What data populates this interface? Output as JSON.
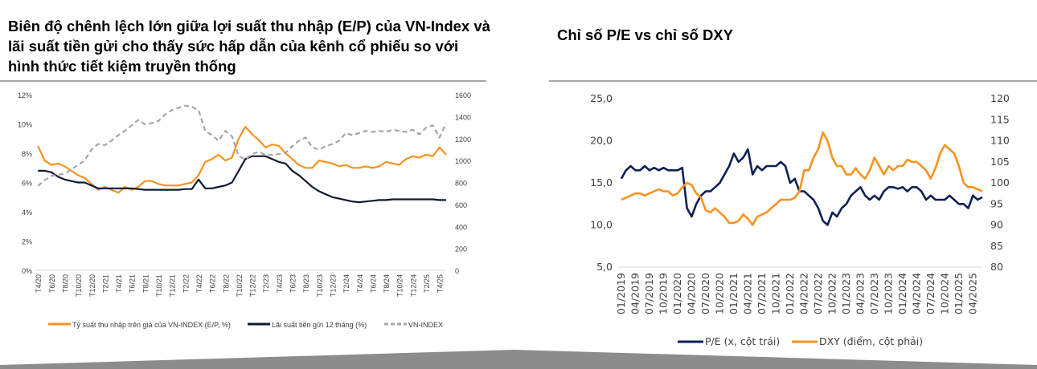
{
  "left_title": "Biên độ chênh lệch lớn giữa lợi suất thu nhập (E/P) của VN-Index và lãi suất tiền gửi cho thấy sức hấp dẫn của kênh cổ phiếu so với hình thức tiết kiệm truyền thống",
  "right_title": "Chỉ số P/E vs chỉ số DXY",
  "chart_data": [
    {
      "type": "line",
      "title": "",
      "ylim": [
        0,
        12
      ],
      "y2lim": [
        0,
        1600
      ],
      "yticks": [
        "0%",
        "2%",
        "4%",
        "6%",
        "8%",
        "10%",
        "12%"
      ],
      "y2ticks": [
        "0",
        "200",
        "400",
        "600",
        "800",
        "1000",
        "1200",
        "1400",
        "1600"
      ],
      "xticks": [
        "T4/20",
        "T6/20",
        "T8/20",
        "T10/20",
        "T12/20",
        "T2/21",
        "T4/21",
        "T6/21",
        "T8/21",
        "T10/21",
        "T12/21",
        "T2/22",
        "T4/22",
        "T6/22",
        "T8/22",
        "T10/22",
        "T12/22",
        "T2/23",
        "T4/23",
        "T6/23",
        "T8/23",
        "T10/23",
        "T12/23",
        "T2/24",
        "T4/24",
        "T6/24",
        "T8/24",
        "T10/24",
        "T12/24",
        "T2/25",
        "T4/25"
      ],
      "series": [
        {
          "name": "Tỷ suất thu nhập trên giá của VN-INDEX (E/P, %)",
          "color": "#f7931e",
          "axis": "left",
          "values": [
            8.5,
            7.5,
            7.2,
            7.3,
            7.1,
            6.8,
            6.5,
            6.3,
            5.9,
            5.5,
            5.7,
            5.5,
            5.3,
            5.7,
            5.5,
            5.7,
            6.1,
            6.1,
            5.9,
            5.8,
            5.8,
            5.8,
            5.9,
            6.0,
            6.5,
            7.4,
            7.6,
            7.9,
            7.5,
            7.7,
            9.0,
            9.8,
            9.3,
            8.9,
            8.4,
            8.6,
            8.5,
            8.0,
            7.6,
            7.2,
            7.0,
            7.0,
            7.5,
            7.4,
            7.3,
            7.1,
            7.2,
            7.0,
            7.0,
            7.1,
            7.0,
            7.1,
            7.4,
            7.3,
            7.2,
            7.6,
            7.8,
            7.7,
            7.9,
            7.8,
            8.4,
            7.9
          ]
        },
        {
          "name": "Lãi suất tiền gửi 12 tháng (%)",
          "color": "#0d1b33",
          "axis": "left",
          "values": [
            6.8,
            6.8,
            6.7,
            6.4,
            6.2,
            6.1,
            6.0,
            6.0,
            5.8,
            5.6,
            5.6,
            5.6,
            5.6,
            5.6,
            5.6,
            5.55,
            5.5,
            5.5,
            5.5,
            5.5,
            5.5,
            5.5,
            5.55,
            5.55,
            6.2,
            5.6,
            5.6,
            5.7,
            5.8,
            6.0,
            6.8,
            7.6,
            7.8,
            7.8,
            7.8,
            7.6,
            7.4,
            7.3,
            6.8,
            6.5,
            6.1,
            5.7,
            5.4,
            5.2,
            5.0,
            4.9,
            4.8,
            4.7,
            4.65,
            4.7,
            4.75,
            4.8,
            4.8,
            4.85,
            4.85,
            4.85,
            4.85,
            4.85,
            4.85,
            4.85,
            4.8,
            4.8
          ]
        },
        {
          "name": "VN-INDEX",
          "color": "#a6a6a6",
          "axis": "right",
          "dashed": true,
          "values": [
            770,
            820,
            860,
            870,
            880,
            920,
            960,
            1000,
            1100,
            1150,
            1140,
            1180,
            1230,
            1270,
            1320,
            1370,
            1330,
            1340,
            1360,
            1420,
            1460,
            1480,
            1500,
            1490,
            1460,
            1270,
            1230,
            1180,
            1270,
            1220,
            1040,
            1010,
            1060,
            1080,
            1050,
            1050,
            1060,
            1070,
            1130,
            1180,
            1210,
            1120,
            1100,
            1130,
            1150,
            1180,
            1250,
            1230,
            1250,
            1270,
            1260,
            1270,
            1260,
            1280,
            1270,
            1260,
            1280,
            1240,
            1300,
            1320,
            1210,
            1340
          ]
        }
      ]
    },
    {
      "type": "line",
      "title": "Chỉ số P/E vs chỉ số DXY",
      "ylim": [
        5,
        25
      ],
      "y2lim": [
        80,
        120
      ],
      "yticks": [
        "5,0",
        "10,0",
        "15,0",
        "20,0",
        "25,0"
      ],
      "y2ticks": [
        "80",
        "85",
        "90",
        "95",
        "100",
        "105",
        "110",
        "115",
        "120"
      ],
      "xticks": [
        "01/2019",
        "04/2019",
        "07/2019",
        "10/2019",
        "01/2020",
        "04/2020",
        "07/2020",
        "10/2020",
        "01/2021",
        "04/2021",
        "07/2021",
        "10/2021",
        "01/2022",
        "04/2022",
        "07/2022",
        "10/2022",
        "01/2023",
        "04/2023",
        "07/2023",
        "10/2023",
        "01/2024",
        "04/2024",
        "07/2024",
        "10/2024",
        "01/2025",
        "04/2025"
      ],
      "series": [
        {
          "name": "P/E (x, cột trái)",
          "color": "#0d2057",
          "axis": "left",
          "values": [
            15.5,
            16.5,
            17,
            16.5,
            16.5,
            17,
            16.5,
            16.8,
            16.5,
            16.8,
            16.5,
            16.5,
            16.5,
            16.8,
            12,
            11,
            12.5,
            13.5,
            14,
            14,
            14.5,
            15,
            16,
            17,
            18.5,
            17.5,
            18,
            19,
            16,
            17,
            16.5,
            17,
            17,
            17,
            17.5,
            17,
            15,
            15.5,
            14,
            14,
            13.5,
            13,
            12,
            10.5,
            10,
            11.5,
            11,
            12,
            12.5,
            13.5,
            14,
            14.5,
            13.5,
            13,
            13.5,
            13,
            14,
            14.5,
            14.5,
            14.3,
            14.5,
            14,
            14.5,
            14.5,
            14,
            13,
            13.5,
            13,
            13,
            13,
            13.5,
            13,
            12.5,
            12.5,
            12,
            13.5,
            13,
            13.3
          ]
        },
        {
          "name": "DXY (điểm, cột phải)",
          "color": "#f7931e",
          "axis": "right",
          "values": [
            96,
            96.5,
            97,
            97.5,
            97.5,
            97,
            97.5,
            98,
            98.5,
            98,
            98,
            97,
            97.5,
            99,
            100,
            99.5,
            97.5,
            96.5,
            93.5,
            93,
            94,
            93,
            92,
            90.5,
            90.5,
            91,
            92.5,
            91.5,
            90,
            92,
            92.5,
            93,
            94,
            95,
            96,
            96,
            96,
            96.5,
            98,
            103,
            103,
            106,
            108,
            112,
            110,
            106,
            104,
            104,
            102,
            102,
            103.5,
            102,
            101,
            103,
            106,
            104,
            102,
            104,
            103,
            104,
            104,
            105.5,
            105,
            105,
            104,
            103,
            101,
            103.5,
            107,
            109,
            108,
            107,
            104,
            100,
            99,
            99,
            98.5,
            98
          ]
        }
      ]
    }
  ]
}
